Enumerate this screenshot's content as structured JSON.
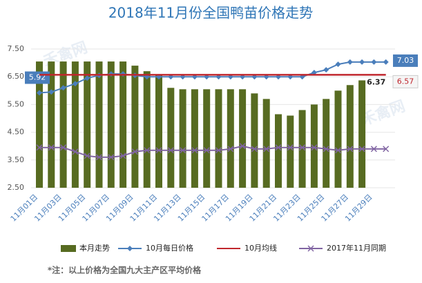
{
  "chart_data": {
    "type": "combo",
    "title": "2018年11月份全国鸭苗价格走势",
    "categories": [
      "11月01日",
      null,
      "11月03日",
      null,
      "11月05日",
      null,
      "11月07日",
      null,
      "11月09日",
      null,
      "11月11日",
      null,
      "11月13日",
      null,
      "11月15日",
      null,
      "11月17日",
      null,
      "11月19日",
      null,
      "11月21日",
      null,
      "11月23日",
      null,
      "11月25日",
      null,
      "11月27日",
      null,
      "11月29日",
      null
    ],
    "ylim": [
      2.5,
      7.5
    ],
    "yticks": [
      {
        "value": 2.5,
        "label": "2.50"
      },
      {
        "value": 3.5,
        "label": "3.50"
      },
      {
        "value": 4.5,
        "label": "4.50"
      },
      {
        "value": 5.5,
        "label": "5.50"
      },
      {
        "value": 6.5,
        "label": "6.50"
      },
      {
        "value": 7.5,
        "label": "7.50"
      }
    ],
    "grid": true,
    "legend": "bottom",
    "series": [
      {
        "name": "本月走势",
        "type": "bar",
        "color": "#576b21",
        "values": [
          7.05,
          7.05,
          7.05,
          7.05,
          7.05,
          7.05,
          7.05,
          7.05,
          6.9,
          6.7,
          6.55,
          6.1,
          6.05,
          6.05,
          6.05,
          6.05,
          6.05,
          6.05,
          5.9,
          5.7,
          5.15,
          5.1,
          5.3,
          5.5,
          5.7,
          6.0,
          6.2,
          6.37,
          null,
          null
        ],
        "value_labels": [
          null,
          null,
          null,
          null,
          null,
          null,
          null,
          null,
          null,
          null,
          null,
          null,
          null,
          null,
          null,
          null,
          null,
          null,
          null,
          null,
          null,
          null,
          null,
          null,
          null,
          null,
          null,
          "6.37",
          null,
          null
        ]
      },
      {
        "name": "10月每日价格",
        "type": "line",
        "marker": "diamond",
        "color": "#4a7ebb",
        "values": [
          5.92,
          5.95,
          6.1,
          6.25,
          6.45,
          6.55,
          6.6,
          6.6,
          6.55,
          6.5,
          6.5,
          6.5,
          6.5,
          6.5,
          6.5,
          6.5,
          6.5,
          6.5,
          6.5,
          6.5,
          6.5,
          6.5,
          6.5,
          6.65,
          6.75,
          6.95,
          7.03,
          7.03,
          7.03,
          7.03
        ],
        "value_labels": [
          "5.92",
          null,
          null,
          null,
          null,
          null,
          null,
          null,
          null,
          null,
          null,
          null,
          null,
          null,
          null,
          null,
          null,
          null,
          null,
          null,
          null,
          null,
          null,
          null,
          null,
          null,
          null,
          null,
          null,
          "7.03"
        ]
      },
      {
        "name": "10月均线",
        "type": "line",
        "marker": "none",
        "color": "#c0262d",
        "values": [
          6.57,
          6.57,
          6.57,
          6.57,
          6.57,
          6.57,
          6.57,
          6.57,
          6.57,
          6.57,
          6.57,
          6.57,
          6.57,
          6.57,
          6.57,
          6.57,
          6.57,
          6.57,
          6.57,
          6.57,
          6.57,
          6.57,
          6.57,
          6.57,
          6.57,
          6.57,
          6.57,
          6.57,
          6.57,
          6.57
        ],
        "value_labels": [
          null,
          null,
          null,
          null,
          null,
          null,
          null,
          null,
          null,
          null,
          null,
          null,
          null,
          null,
          null,
          null,
          null,
          null,
          null,
          null,
          null,
          null,
          null,
          null,
          null,
          null,
          null,
          null,
          null,
          "6.57"
        ]
      },
      {
        "name": "2017年11月同期",
        "type": "line",
        "marker": "x",
        "color": "#8064a2",
        "values": [
          3.95,
          3.95,
          3.95,
          3.8,
          3.65,
          3.6,
          3.6,
          3.65,
          3.8,
          3.85,
          3.85,
          3.85,
          3.85,
          3.85,
          3.85,
          3.85,
          3.9,
          4.0,
          3.9,
          3.9,
          3.95,
          3.95,
          3.95,
          3.95,
          3.9,
          3.85,
          3.9,
          3.9,
          3.9,
          3.9
        ]
      }
    ],
    "watermark": "禾禽网",
    "footnote": "*注：以上价格为全国九大主产区平均价格"
  }
}
